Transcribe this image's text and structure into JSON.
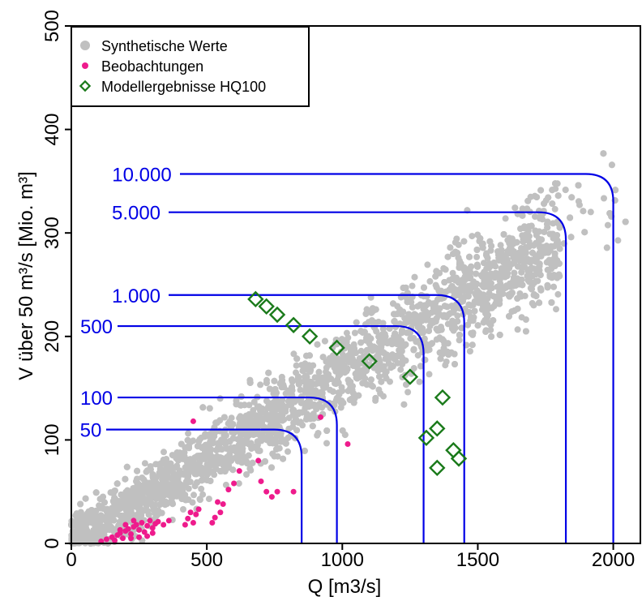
{
  "chart_data": {
    "type": "scatter",
    "xlabel": "Q [m3/s]",
    "ylabel": "V über 50 m³/s [Mio. m³]",
    "xlim": [
      0,
      2100
    ],
    "ylim": [
      0,
      500
    ],
    "x_ticks": [
      0,
      500,
      1000,
      1500,
      2000
    ],
    "y_ticks": [
      0,
      100,
      200,
      300,
      400,
      500
    ],
    "x_tick_labels": [
      "0",
      "500",
      "1000",
      "1500",
      "2000"
    ],
    "y_tick_labels": [
      "0",
      "100",
      "200",
      "300",
      "400",
      "500"
    ],
    "grid": false,
    "legend": {
      "position": "top-left",
      "entries": [
        "Synthetische Werte",
        "Beobachtungen",
        "Modellergebnisse HQ100"
      ]
    },
    "colors": {
      "synthetic": "#c0c0c0",
      "observations": "#ee1b8c",
      "model": "#1a7a1a",
      "iso_lines": "#0000e6"
    },
    "series": [
      {
        "name": "Synthetische Werte",
        "cloud": {
          "count": 4000,
          "x_range": [
            0,
            2050
          ],
          "slope": 0.165,
          "spread": 18
        }
      },
      {
        "name": "Beobachtungen",
        "points": [
          [
            110,
            2
          ],
          [
            130,
            4
          ],
          [
            150,
            6
          ],
          [
            160,
            3
          ],
          [
            170,
            8
          ],
          [
            180,
            10
          ],
          [
            190,
            5
          ],
          [
            200,
            12
          ],
          [
            210,
            14
          ],
          [
            220,
            9
          ],
          [
            230,
            16
          ],
          [
            240,
            18
          ],
          [
            250,
            13
          ],
          [
            260,
            20
          ],
          [
            270,
            11
          ],
          [
            280,
            17
          ],
          [
            290,
            22
          ],
          [
            300,
            15
          ],
          [
            310,
            19
          ],
          [
            320,
            21
          ],
          [
            340,
            18
          ],
          [
            360,
            22
          ],
          [
            200,
            18
          ],
          [
            230,
            22
          ],
          [
            250,
            6
          ],
          [
            300,
            10
          ],
          [
            180,
            13
          ],
          [
            220,
            5
          ],
          [
            280,
            7
          ],
          [
            420,
            18
          ],
          [
            430,
            24
          ],
          [
            440,
            30
          ],
          [
            450,
            20
          ],
          [
            460,
            28
          ],
          [
            470,
            33
          ],
          [
            450,
            118
          ],
          [
            520,
            20
          ],
          [
            530,
            25
          ],
          [
            540,
            40
          ],
          [
            550,
            30
          ],
          [
            560,
            38
          ],
          [
            580,
            52
          ],
          [
            600,
            58
          ],
          [
            620,
            70
          ],
          [
            690,
            80
          ],
          [
            700,
            60
          ],
          [
            720,
            50
          ],
          [
            740,
            45
          ],
          [
            760,
            50
          ],
          [
            820,
            50
          ],
          [
            920,
            122
          ],
          [
            1020,
            96
          ]
        ]
      },
      {
        "name": "Modellergebnisse HQ100",
        "points": [
          [
            680,
            236
          ],
          [
            720,
            229
          ],
          [
            760,
            221
          ],
          [
            820,
            211
          ],
          [
            880,
            200
          ],
          [
            980,
            189
          ],
          [
            1100,
            176
          ],
          [
            1250,
            161
          ],
          [
            1310,
            102
          ],
          [
            1350,
            111
          ],
          [
            1350,
            73
          ],
          [
            1370,
            141
          ],
          [
            1410,
            90
          ],
          [
            1430,
            82
          ]
        ]
      }
    ],
    "iso_lines": [
      {
        "label": "50",
        "V": 110,
        "Q": 850
      },
      {
        "label": "100",
        "V": 141,
        "Q": 980
      },
      {
        "label": "500",
        "V": 210,
        "Q": 1300
      },
      {
        "label": "1.000",
        "V": 240,
        "Q": 1450
      },
      {
        "label": "5.000",
        "V": 320,
        "Q": 1825
      },
      {
        "label": "10.000",
        "V": 357,
        "Q": 2000
      }
    ]
  }
}
